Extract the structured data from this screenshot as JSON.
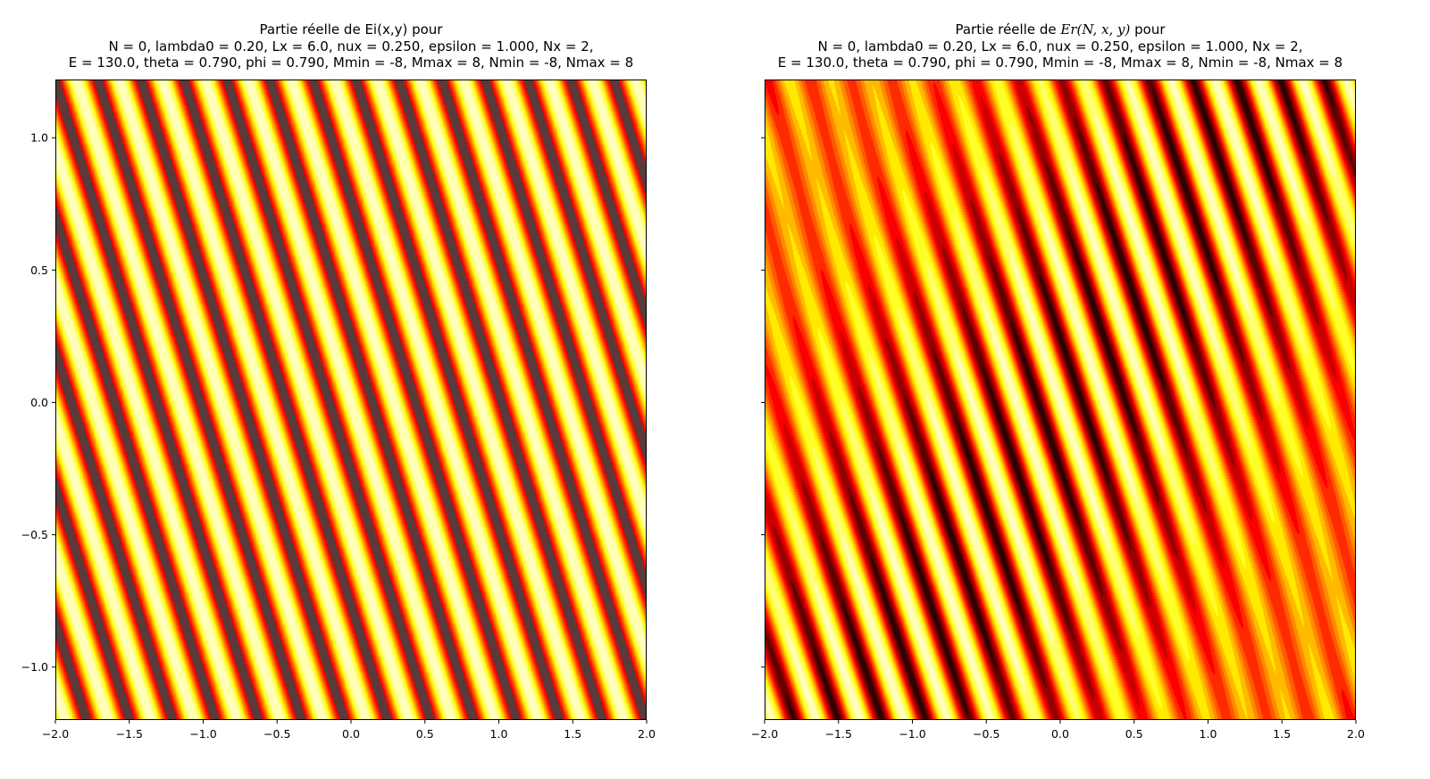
{
  "chart_data": [
    {
      "type": "heatmap",
      "title_lines": [
        "Partie réelle de Ei(x,y) pour",
        "N = 0, lambda0 = 0.20, Lx = 6.0, nux = 0.250, epsilon = 1.000, Nx = 2,",
        "E = 130.0, theta = 0.790, phi = 0.790, Mmin = -8, Mmax = 8, Nmin = -8, Nmax = 8"
      ],
      "xlim": [
        -2.0,
        2.0
      ],
      "ylim": [
        -1.2,
        1.22
      ],
      "x_ticks": [
        "−2.0",
        "−1.5",
        "−1.0",
        "−0.5",
        "0.0",
        "0.5",
        "1.0",
        "1.5",
        "2.0"
      ],
      "x_tick_values": [
        -2.0,
        -1.5,
        -1.0,
        -0.5,
        0.0,
        0.5,
        1.0,
        1.5,
        2.0
      ],
      "y_ticks": [
        "1.0",
        "0.5",
        "0.0",
        "−0.5",
        "−1.0"
      ],
      "y_tick_values": [
        1.0,
        0.5,
        0.0,
        -0.5,
        -1.0
      ],
      "colormap": "hot",
      "field": "cos(kx*x + ky*y)",
      "kx": 21.6,
      "ky": 12.3,
      "darkest_color": "#5a3a3a"
    },
    {
      "type": "heatmap",
      "title_prefix": "Partie réelle de ",
      "title_math": "Er(N, x, y)",
      "title_suffix": " pour",
      "title_lines_rest": [
        "N = 0, lambda0 = 0.20, Lx = 6.0, nux = 0.250, epsilon = 1.000, Nx = 2,",
        "E = 130.0, theta = 0.790, phi = 0.790, Mmin = -8, Mmax = 8, Nmin = -8, Nmax = 8"
      ],
      "xlim": [
        -2.0,
        2.0
      ],
      "ylim": [
        -1.2,
        1.22
      ],
      "x_ticks": [
        "−2.0",
        "−1.5",
        "−1.0",
        "−0.5",
        "0.0",
        "0.5",
        "1.0",
        "1.5",
        "2.0"
      ],
      "x_tick_values": [
        -2.0,
        -1.5,
        -1.0,
        -0.5,
        0.0,
        0.5,
        1.0,
        1.5,
        2.0
      ],
      "y_ticks_labelled": false,
      "y_tick_values": [
        1.0,
        0.5,
        0.0,
        -0.5,
        -1.0
      ],
      "colormap": "hot",
      "field": "sum of two tilted plane waves",
      "waves": [
        {
          "kx": 21.6,
          "ky": 12.3,
          "amp": 1.0
        },
        {
          "kx": 20.4,
          "ky": 13.6,
          "amp": 0.55
        }
      ],
      "brightest_color": "#ffff1a"
    }
  ]
}
